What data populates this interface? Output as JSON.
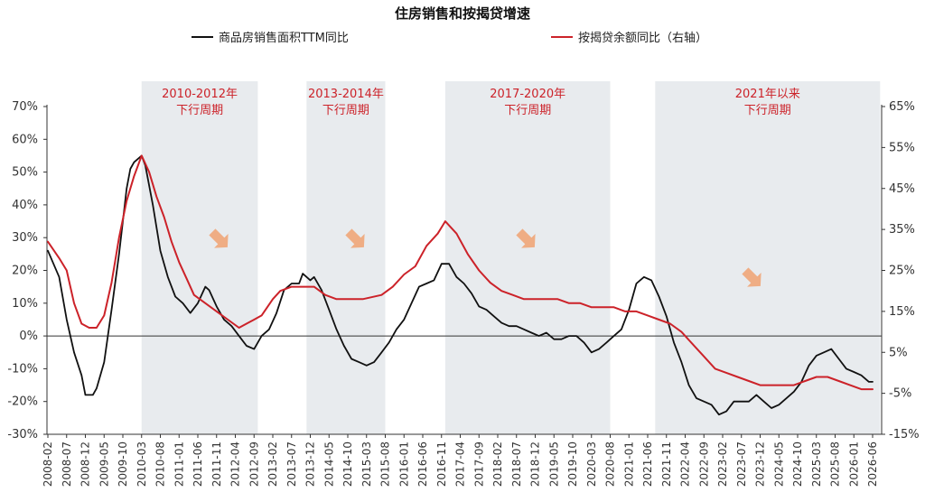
{
  "chart_data": {
    "type": "line",
    "title": "住房销售和按揭贷增速",
    "xlabel": "",
    "ylabel": "",
    "y_left": {
      "min": -0.3,
      "max": 0.7,
      "step": 0.1,
      "tick_labels": [
        "70%",
        "60%",
        "50%",
        "40%",
        "30%",
        "20%",
        "10%",
        "0%",
        "-10%",
        "-20%",
        "-30%"
      ]
    },
    "y_right": {
      "min": -0.15,
      "max": 0.65,
      "step": 0.1,
      "tick_labels": [
        "65%",
        "55%",
        "45%",
        "35%",
        "25%",
        "15%",
        "5%",
        "-5%",
        "-15%"
      ]
    },
    "x_ticks": [
      "2008-02",
      "2008-07",
      "2008-12",
      "2009-05",
      "2009-10",
      "2010-03",
      "2010-08",
      "2011-01",
      "2011-06",
      "2011-11",
      "2012-04",
      "2012-09",
      "2013-02",
      "2013-07",
      "2013-12",
      "2014-05",
      "2014-10",
      "2015-03",
      "2015-08",
      "2016-01",
      "2016-06",
      "2016-11",
      "2017-04",
      "2017-09",
      "2018-02",
      "2018-07",
      "2018-12",
      "2019-05",
      "2019-10",
      "2020-03",
      "2020-08",
      "2021-01",
      "2021-06",
      "2021-11",
      "2022-04",
      "2022-09",
      "2023-02",
      "2023-07",
      "2023-12",
      "2024-05",
      "2024-10",
      "2025-03",
      "2025-08",
      "2026-01",
      "2026-06"
    ],
    "legend_position": "top",
    "grid": false,
    "series": [
      {
        "name": "商品房销售面积TTM同比",
        "axis": "left",
        "color": "#111111",
        "points": [
          [
            "2008-02",
            0.26
          ],
          [
            "2008-05",
            0.18
          ],
          [
            "2008-07",
            0.05
          ],
          [
            "2008-09",
            -0.05
          ],
          [
            "2008-11",
            -0.12
          ],
          [
            "2008-12",
            -0.18
          ],
          [
            "2009-02",
            -0.18
          ],
          [
            "2009-03",
            -0.16
          ],
          [
            "2009-05",
            -0.08
          ],
          [
            "2009-07",
            0.08
          ],
          [
            "2009-09",
            0.25
          ],
          [
            "2009-11",
            0.45
          ],
          [
            "2009-12",
            0.51
          ],
          [
            "2010-01",
            0.53
          ],
          [
            "2010-03",
            0.55
          ],
          [
            "2010-04",
            0.52
          ],
          [
            "2010-06",
            0.4
          ],
          [
            "2010-08",
            0.26
          ],
          [
            "2010-10",
            0.18
          ],
          [
            "2010-12",
            0.12
          ],
          [
            "2011-02",
            0.1
          ],
          [
            "2011-04",
            0.07
          ],
          [
            "2011-06",
            0.1
          ],
          [
            "2011-08",
            0.15
          ],
          [
            "2011-09",
            0.14
          ],
          [
            "2011-11",
            0.09
          ],
          [
            "2012-01",
            0.05
          ],
          [
            "2012-03",
            0.03
          ],
          [
            "2012-05",
            0.0
          ],
          [
            "2012-07",
            -0.03
          ],
          [
            "2012-09",
            -0.04
          ],
          [
            "2012-11",
            0.0
          ],
          [
            "2013-01",
            0.02
          ],
          [
            "2013-03",
            0.07
          ],
          [
            "2013-05",
            0.14
          ],
          [
            "2013-07",
            0.16
          ],
          [
            "2013-09",
            0.16
          ],
          [
            "2013-10",
            0.19
          ],
          [
            "2013-12",
            0.17
          ],
          [
            "2014-01",
            0.18
          ],
          [
            "2014-03",
            0.14
          ],
          [
            "2014-05",
            0.08
          ],
          [
            "2014-07",
            0.02
          ],
          [
            "2014-09",
            -0.03
          ],
          [
            "2014-11",
            -0.07
          ],
          [
            "2015-01",
            -0.08
          ],
          [
            "2015-03",
            -0.09
          ],
          [
            "2015-05",
            -0.08
          ],
          [
            "2015-07",
            -0.05
          ],
          [
            "2015-09",
            -0.02
          ],
          [
            "2015-11",
            0.02
          ],
          [
            "2016-01",
            0.05
          ],
          [
            "2016-03",
            0.1
          ],
          [
            "2016-05",
            0.15
          ],
          [
            "2016-07",
            0.16
          ],
          [
            "2016-09",
            0.17
          ],
          [
            "2016-11",
            0.22
          ],
          [
            "2017-01",
            0.22
          ],
          [
            "2017-03",
            0.18
          ],
          [
            "2017-05",
            0.16
          ],
          [
            "2017-07",
            0.13
          ],
          [
            "2017-09",
            0.09
          ],
          [
            "2017-11",
            0.08
          ],
          [
            "2018-01",
            0.06
          ],
          [
            "2018-03",
            0.04
          ],
          [
            "2018-05",
            0.03
          ],
          [
            "2018-07",
            0.03
          ],
          [
            "2018-09",
            0.02
          ],
          [
            "2018-11",
            0.01
          ],
          [
            "2019-01",
            0.0
          ],
          [
            "2019-03",
            0.01
          ],
          [
            "2019-05",
            -0.01
          ],
          [
            "2019-07",
            -0.01
          ],
          [
            "2019-09",
            0.0
          ],
          [
            "2019-11",
            0.0
          ],
          [
            "2020-01",
            -0.02
          ],
          [
            "2020-03",
            -0.05
          ],
          [
            "2020-05",
            -0.04
          ],
          [
            "2020-07",
            -0.02
          ],
          [
            "2020-09",
            0.0
          ],
          [
            "2020-11",
            0.02
          ],
          [
            "2021-01",
            0.08
          ],
          [
            "2021-03",
            0.16
          ],
          [
            "2021-05",
            0.18
          ],
          [
            "2021-07",
            0.17
          ],
          [
            "2021-09",
            0.12
          ],
          [
            "2021-11",
            0.06
          ],
          [
            "2022-01",
            -0.02
          ],
          [
            "2022-03",
            -0.08
          ],
          [
            "2022-05",
            -0.15
          ],
          [
            "2022-07",
            -0.19
          ],
          [
            "2022-09",
            -0.2
          ],
          [
            "2022-11",
            -0.21
          ],
          [
            "2023-01",
            -0.24
          ],
          [
            "2023-03",
            -0.23
          ],
          [
            "2023-05",
            -0.2
          ],
          [
            "2023-07",
            -0.2
          ],
          [
            "2023-09",
            -0.2
          ],
          [
            "2023-11",
            -0.18
          ],
          [
            "2024-01",
            -0.2
          ],
          [
            "2024-03",
            -0.22
          ],
          [
            "2024-05",
            -0.21
          ],
          [
            "2024-07",
            -0.19
          ],
          [
            "2024-09",
            -0.17
          ],
          [
            "2024-11",
            -0.14
          ],
          [
            "2025-01",
            -0.09
          ],
          [
            "2025-03",
            -0.06
          ],
          [
            "2025-05",
            -0.05
          ],
          [
            "2025-07",
            -0.04
          ],
          [
            "2025-09",
            -0.07
          ],
          [
            "2025-11",
            -0.1
          ],
          [
            "2026-01",
            -0.11
          ],
          [
            "2026-03",
            -0.12
          ],
          [
            "2026-05",
            -0.14
          ],
          [
            "2026-06",
            -0.14
          ]
        ]
      },
      {
        "name": "按揭贷余额同比（右轴）",
        "axis": "right",
        "color": "#cc2229",
        "points": [
          [
            "2008-02",
            0.32
          ],
          [
            "2008-05",
            0.28
          ],
          [
            "2008-07",
            0.25
          ],
          [
            "2008-09",
            0.17
          ],
          [
            "2008-11",
            0.12
          ],
          [
            "2009-01",
            0.11
          ],
          [
            "2009-03",
            0.11
          ],
          [
            "2009-05",
            0.14
          ],
          [
            "2009-07",
            0.22
          ],
          [
            "2009-09",
            0.33
          ],
          [
            "2009-11",
            0.42
          ],
          [
            "2010-01",
            0.48
          ],
          [
            "2010-03",
            0.53
          ],
          [
            "2010-05",
            0.49
          ],
          [
            "2010-07",
            0.43
          ],
          [
            "2010-09",
            0.38
          ],
          [
            "2010-11",
            0.32
          ],
          [
            "2011-01",
            0.27
          ],
          [
            "2011-03",
            0.23
          ],
          [
            "2011-05",
            0.19
          ],
          [
            "2011-08",
            0.17
          ],
          [
            "2011-11",
            0.15
          ],
          [
            "2012-02",
            0.13
          ],
          [
            "2012-05",
            0.11
          ],
          [
            "2012-07",
            0.12
          ],
          [
            "2012-09",
            0.13
          ],
          [
            "2012-11",
            0.14
          ],
          [
            "2013-02",
            0.18
          ],
          [
            "2013-04",
            0.2
          ],
          [
            "2013-07",
            0.21
          ],
          [
            "2013-10",
            0.21
          ],
          [
            "2014-01",
            0.21
          ],
          [
            "2014-04",
            0.19
          ],
          [
            "2014-07",
            0.18
          ],
          [
            "2014-10",
            0.18
          ],
          [
            "2015-02",
            0.18
          ],
          [
            "2015-07",
            0.19
          ],
          [
            "2015-10",
            0.21
          ],
          [
            "2016-01",
            0.24
          ],
          [
            "2016-04",
            0.26
          ],
          [
            "2016-07",
            0.31
          ],
          [
            "2016-10",
            0.34
          ],
          [
            "2016-12",
            0.37
          ],
          [
            "2017-03",
            0.34
          ],
          [
            "2017-06",
            0.29
          ],
          [
            "2017-09",
            0.25
          ],
          [
            "2017-12",
            0.22
          ],
          [
            "2018-03",
            0.2
          ],
          [
            "2018-06",
            0.19
          ],
          [
            "2018-09",
            0.18
          ],
          [
            "2018-12",
            0.18
          ],
          [
            "2019-03",
            0.18
          ],
          [
            "2019-06",
            0.18
          ],
          [
            "2019-09",
            0.17
          ],
          [
            "2019-12",
            0.17
          ],
          [
            "2020-03",
            0.16
          ],
          [
            "2020-06",
            0.16
          ],
          [
            "2020-09",
            0.16
          ],
          [
            "2020-12",
            0.15
          ],
          [
            "2021-03",
            0.15
          ],
          [
            "2021-06",
            0.14
          ],
          [
            "2021-09",
            0.13
          ],
          [
            "2021-12",
            0.12
          ],
          [
            "2022-03",
            0.1
          ],
          [
            "2022-06",
            0.07
          ],
          [
            "2022-09",
            0.04
          ],
          [
            "2022-12",
            0.01
          ],
          [
            "2023-03",
            0.0
          ],
          [
            "2023-06",
            -0.01
          ],
          [
            "2023-09",
            -0.02
          ],
          [
            "2023-12",
            -0.03
          ],
          [
            "2024-03",
            -0.03
          ],
          [
            "2024-06",
            -0.03
          ],
          [
            "2024-09",
            -0.03
          ],
          [
            "2024-12",
            -0.02
          ],
          [
            "2025-03",
            -0.01
          ],
          [
            "2025-06",
            -0.01
          ],
          [
            "2025-09",
            -0.02
          ],
          [
            "2025-12",
            -0.03
          ],
          [
            "2026-03",
            -0.04
          ],
          [
            "2026-06",
            -0.04
          ]
        ]
      }
    ],
    "shaded_periods": [
      {
        "label_line1": "2010-2012年",
        "label_line2": "下行周期",
        "start": "2010-03",
        "end": "2012-10"
      },
      {
        "label_line1": "2013-2014年",
        "label_line2": "下行周期",
        "start": "2013-11",
        "end": "2015-08"
      },
      {
        "label_line1": "2017-2020年",
        "label_line2": "下行周期",
        "start": "2016-12",
        "end": "2020-08"
      },
      {
        "label_line1": "2021年以来",
        "label_line2": "下行周期",
        "start": "2021-08",
        "end": "2026-08"
      }
    ],
    "colors": {
      "shade": "#e8ebee",
      "arrow": "#f0a271",
      "axis": "#333333"
    }
  }
}
